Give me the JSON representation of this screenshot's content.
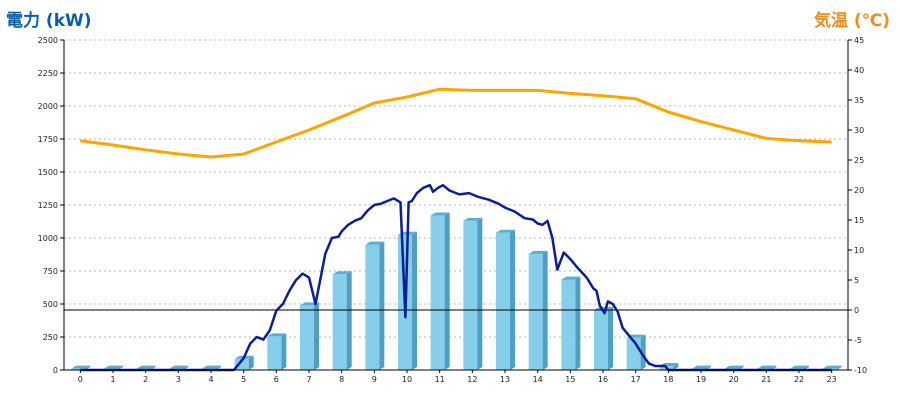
{
  "chart_data": {
    "type": "bar",
    "left_axis_label": "電力 (kW)",
    "right_axis_label": "気温 (℃)",
    "categories": [
      "0",
      "1",
      "2",
      "3",
      "4",
      "5",
      "6",
      "7",
      "8",
      "9",
      "10",
      "11",
      "12",
      "13",
      "14",
      "15",
      "16",
      "17",
      "18",
      "19",
      "20",
      "21",
      "22",
      "23"
    ],
    "y_left_ticks": [
      "0",
      "250",
      "500",
      "750",
      "1000",
      "1250",
      "1500",
      "1750",
      "2000",
      "2250",
      "2500"
    ],
    "y_right_ticks": [
      "-10",
      "-5",
      "0",
      "5",
      "10",
      "15",
      "20",
      "25",
      "30",
      "35",
      "40",
      "45"
    ],
    "ylim_left": [
      0,
      2500
    ],
    "ylim_right": [
      -10,
      45
    ],
    "grid": "horizontal dashed",
    "colors": {
      "left_title": "#0b5fa5",
      "right_title": "#f08c1e",
      "bar_front": "#87ceeb",
      "bar_side": "#4f9ec4",
      "bar_top": "#5aaed3",
      "power_line": "#0a1e96",
      "temp_line": "#ffa500",
      "zero_line": "#000000",
      "grid": "#b4b4b4"
    },
    "series": [
      {
        "type": "bar",
        "axis": "left",
        "values": [
          10,
          10,
          10,
          10,
          10,
          85,
          255,
          490,
          725,
          950,
          1025,
          1170,
          1130,
          1040,
          880,
          685,
          455,
          245,
          30,
          10,
          10,
          10,
          10,
          10
        ]
      },
      {
        "type": "line",
        "axis": "left",
        "x": [
          0,
          1,
          2,
          3,
          4,
          4.7,
          5,
          5.2,
          5.4,
          5.6,
          5.8,
          6,
          6.2,
          6.4,
          6.6,
          6.8,
          7,
          7.2,
          7.5,
          7.7,
          7.9,
          8,
          8.2,
          8.4,
          8.6,
          8.8,
          9,
          9.2,
          9.4,
          9.6,
          9.8,
          9.95,
          10.05,
          10.15,
          10.3,
          10.5,
          10.7,
          10.8,
          10.95,
          11.1,
          11.3,
          11.6,
          11.9,
          12.2,
          12.5,
          12.8,
          13,
          13.3,
          13.6,
          13.85,
          14,
          14.15,
          14.3,
          14.45,
          14.6,
          14.8,
          15,
          15.2,
          15.5,
          15.7,
          15.8,
          15.9,
          16.05,
          16.15,
          16.3,
          16.45,
          16.6,
          16.8,
          17,
          17.2,
          17.4,
          17.6,
          17.9,
          18,
          18.5,
          19,
          20,
          21,
          22,
          23
        ],
        "y": [
          0,
          0,
          0,
          0,
          0,
          0,
          90,
          200,
          250,
          230,
          300,
          450,
          500,
          600,
          680,
          730,
          700,
          500,
          880,
          1000,
          1010,
          1050,
          1100,
          1130,
          1150,
          1210,
          1250,
          1260,
          1280,
          1300,
          1270,
          400,
          1270,
          1280,
          1340,
          1380,
          1400,
          1350,
          1380,
          1400,
          1360,
          1330,
          1340,
          1310,
          1290,
          1260,
          1230,
          1200,
          1150,
          1140,
          1110,
          1100,
          1130,
          1000,
          760,
          890,
          840,
          780,
          700,
          620,
          600,
          490,
          430,
          520,
          500,
          440,
          320,
          260,
          200,
          120,
          50,
          30,
          30,
          0,
          0,
          0,
          0,
          0,
          0,
          0
        ]
      },
      {
        "type": "line",
        "axis": "right",
        "x": [
          0,
          1,
          2,
          3,
          4,
          5,
          6,
          7,
          8,
          9,
          10,
          11,
          12,
          13,
          14,
          15,
          16,
          17,
          18,
          19,
          20,
          21,
          22,
          23
        ],
        "y": [
          28.2,
          27.5,
          26.7,
          26.0,
          25.5,
          26.0,
          28.0,
          30.0,
          32.2,
          34.5,
          35.5,
          36.8,
          36.6,
          36.6,
          36.6,
          36.1,
          35.7,
          35.2,
          33.0,
          31.4,
          30.0,
          28.6,
          28.2,
          28.0
        ]
      }
    ]
  }
}
